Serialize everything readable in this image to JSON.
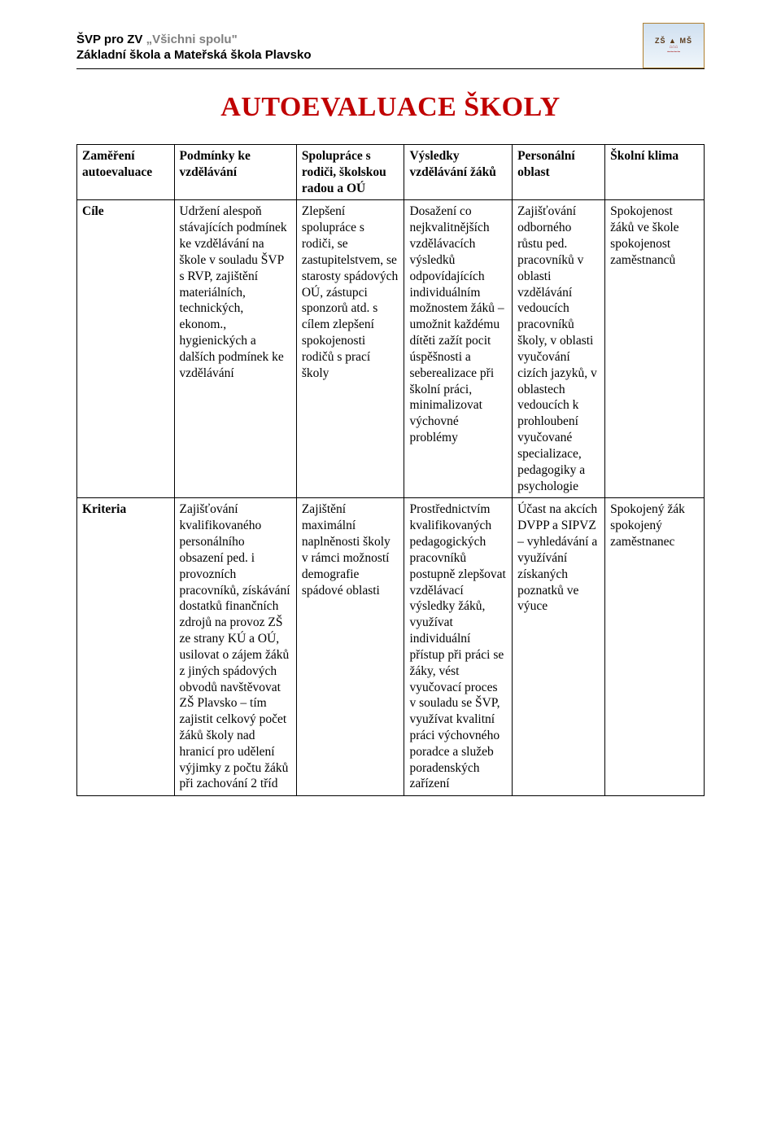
{
  "header": {
    "line1_prefix": "ŠVP pro ZV ",
    "line1_quoted": "„Všichni spolu\"",
    "line2": "Základní škola a Mateřská škola Plavsko",
    "logo_top": "ZŠ ▲ MŠ",
    "logo_mid": "⌂⌂⌂",
    "logo_bot": "~~~~"
  },
  "title": "AUTOEVALUACE ŠKOLY",
  "table": {
    "r1": {
      "c1": "Zaměření autoevaluace",
      "c2": "Podmínky ke vzdělávání",
      "c3": "Spolupráce s rodiči, školskou radou a OÚ",
      "c4": "Výsledky vzdělávání žáků",
      "c5": "Personální oblast",
      "c6": "Školní klima"
    },
    "r2": {
      "c1": "Cíle",
      "c2": "Udržení alespoň stávajících podmínek ke vzdělávání na škole v souladu ŠVP s RVP, zajištění materiálních, technických, ekonom., hygienických a dalších podmínek ke vzdělávání",
      "c3": "Zlepšení spolupráce s rodiči, se zastupitelstvem, se starosty spádových OÚ, zástupci sponzorů atd. s cílem zlepšení spokojenosti rodičů s prací školy",
      "c4": "Dosažení co nejkvalitnějších vzdělávacích výsledků odpovídajících individuálním možnostem žáků – umožnit každému dítěti zažít pocit úspěšnosti a seberealizace při školní práci, minimalizovat výchovné problémy",
      "c5": "Zajišťování odborného růstu ped. pracovníků v oblasti vzdělávání vedoucích pracovníků školy, v oblasti vyučování cizích jazyků, v oblastech vedoucích k prohloubení vyučované specializace, pedagogiky a psychologie",
      "c6": "Spokojenost žáků ve škole spokojenost zaměstnanců"
    },
    "r3": {
      "c1": "Kriteria",
      "c2": "Zajišťování kvalifikovaného personálního obsazení ped. i provozních pracovníků, získávání dostatků finančních zdrojů na provoz ZŠ ze strany KÚ a OÚ, usilovat o zájem žáků z jiných spádových obvodů navštěvovat ZŠ Plavsko – tím zajistit celkový počet žáků školy nad hranicí pro udělení výjimky z počtu žáků při zachování 2 tříd",
      "c3": "Zajištění maximální naplněnosti školy v rámci možností demografie spádové oblasti",
      "c4": "Prostřednictvím kvalifikovaných pedagogických pracovníků postupně zlepšovat vzdělávací výsledky žáků, využívat individuální přístup při práci se žáky, vést vyučovací proces v souladu se ŠVP, využívat kvalitní práci výchovného poradce a služeb poradenských zařízení",
      "c5": "Účast na akcích DVPP a SIPVZ – vyhledávání a využívání získaných poznatků ve výuce",
      "c6": "Spokojený žák spokojený zaměstnanec"
    }
  }
}
